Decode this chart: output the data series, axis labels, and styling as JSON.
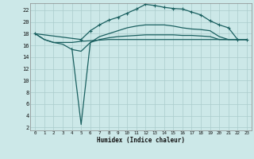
{
  "xlabel": "Humidex (Indice chaleur)",
  "bg_color": "#cce8e8",
  "grid_color": "#aacccc",
  "line_color": "#1a6060",
  "x_ticks": [
    0,
    1,
    2,
    3,
    4,
    5,
    6,
    7,
    8,
    9,
    10,
    11,
    12,
    13,
    14,
    15,
    16,
    17,
    18,
    19,
    20,
    21,
    22,
    23
  ],
  "y_ticks": [
    2,
    4,
    6,
    8,
    10,
    12,
    14,
    16,
    18,
    20,
    22
  ],
  "xlim": [
    -0.5,
    23.5
  ],
  "ylim": [
    1.5,
    23.2
  ],
  "curves": [
    {
      "x": [
        0,
        1,
        2,
        3,
        4,
        5,
        6,
        7,
        8,
        9,
        10,
        11,
        12,
        13,
        14,
        15,
        16,
        17,
        18,
        19,
        20,
        21,
        22,
        23
      ],
      "y": [
        18.0,
        17.0,
        16.5,
        16.5,
        16.5,
        16.7,
        16.8,
        16.9,
        17.0,
        17.0,
        17.0,
        17.0,
        17.0,
        17.0,
        17.0,
        17.0,
        17.0,
        17.0,
        17.0,
        17.0,
        17.0,
        17.0,
        17.0,
        17.0
      ],
      "marker": false,
      "lw": 0.9
    },
    {
      "x": [
        0,
        1,
        2,
        3,
        4,
        5,
        6,
        7,
        8,
        9,
        10,
        11,
        12,
        13,
        14,
        15,
        16,
        17,
        18,
        19,
        20,
        21,
        22,
        23
      ],
      "y": [
        18.0,
        17.0,
        16.5,
        16.2,
        15.3,
        15.0,
        16.5,
        17.0,
        17.3,
        17.5,
        17.6,
        17.7,
        17.8,
        17.8,
        17.8,
        17.8,
        17.7,
        17.7,
        17.6,
        17.5,
        17.0,
        17.0,
        17.0,
        17.0
      ],
      "marker": false,
      "lw": 0.9
    },
    {
      "x": [
        4,
        5,
        6,
        7,
        8,
        9,
        10,
        11,
        12,
        13,
        14,
        15,
        16,
        17,
        18,
        19,
        20,
        21,
        22,
        23
      ],
      "y": [
        15.5,
        2.5,
        16.5,
        17.5,
        18.0,
        18.5,
        19.0,
        19.3,
        19.5,
        19.5,
        19.5,
        19.3,
        19.0,
        18.8,
        18.7,
        18.5,
        17.5,
        17.0,
        17.0,
        17.0
      ],
      "marker": false,
      "lw": 0.9
    },
    {
      "x": [
        0,
        5,
        6,
        7,
        8,
        9,
        10,
        11,
        12,
        13,
        14,
        15,
        16,
        17,
        18,
        19,
        20,
        21,
        22,
        23
      ],
      "y": [
        18.0,
        17.0,
        18.5,
        19.5,
        20.3,
        20.8,
        21.5,
        22.2,
        23.0,
        22.8,
        22.5,
        22.3,
        22.2,
        21.7,
        21.2,
        20.2,
        19.5,
        19.0,
        17.0,
        17.0
      ],
      "marker": true,
      "lw": 0.9
    }
  ]
}
